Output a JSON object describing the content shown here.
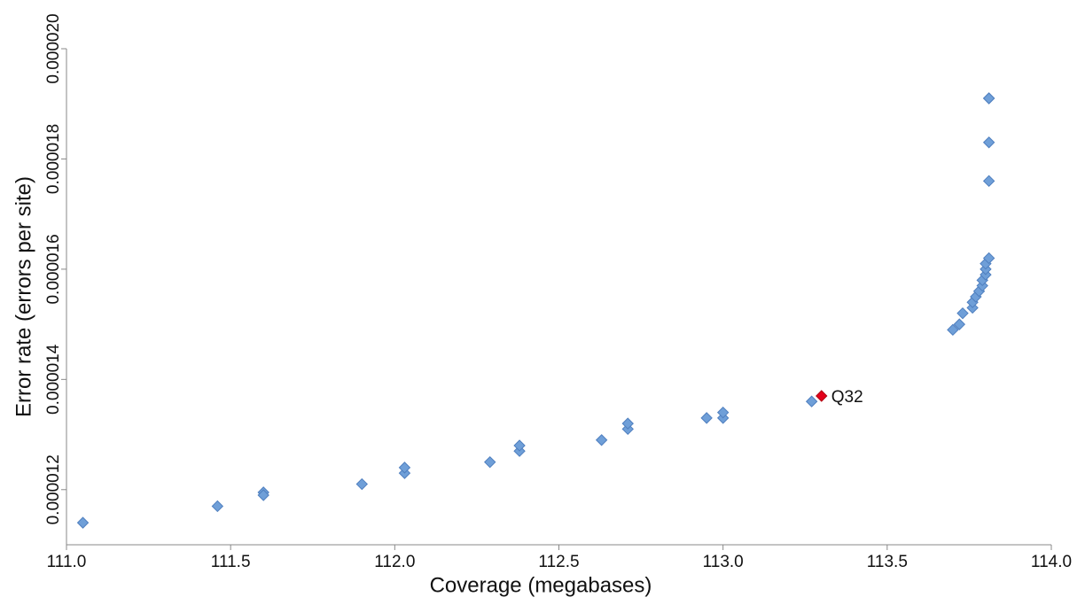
{
  "chart_data": {
    "type": "scatter",
    "x_label": "Coverage (megabases)",
    "y_label": "Error rate (errors per site)",
    "xlim": [
      111.0,
      114.0
    ],
    "xticks": [
      {
        "value": 111.0,
        "label": "111.0"
      },
      {
        "value": 111.5,
        "label": "111.5"
      },
      {
        "value": 112.0,
        "label": "112.0"
      },
      {
        "value": 112.5,
        "label": "112.5"
      },
      {
        "value": 113.0,
        "label": "113.0"
      },
      {
        "value": 113.5,
        "label": "113.5"
      },
      {
        "value": 114.0,
        "label": "114.0"
      }
    ],
    "ylim": [
      1.1e-05,
      2e-05
    ],
    "yticks": [
      1.2e-05,
      1.4e-05,
      1.6e-05,
      1.8e-05,
      {
        "value": 2e-05,
        "label": "0.000020"
      }
    ],
    "series": [
      {
        "color": "#6f9fd8",
        "x": [
          111.05,
          111.46,
          111.6,
          111.6,
          111.9,
          112.03,
          112.03,
          112.29,
          112.38,
          112.38,
          112.63,
          112.71,
          112.71,
          112.95,
          113.0,
          113.0,
          113.27,
          113.7,
          113.72,
          113.73,
          113.76,
          113.76,
          113.77,
          113.78,
          113.79,
          113.79,
          113.8,
          113.8,
          113.8,
          113.81,
          113.81,
          113.81,
          113.81,
          113.81
        ],
        "values": [
          1.14e-05,
          1.17e-05,
          1.195e-05,
          1.19e-05,
          1.21e-05,
          1.23e-05,
          1.24e-05,
          1.25e-05,
          1.27e-05,
          1.28e-05,
          1.29e-05,
          1.31e-05,
          1.32e-05,
          1.33e-05,
          1.33e-05,
          1.34e-05,
          1.36e-05,
          1.49e-05,
          1.5e-05,
          1.52e-05,
          1.53e-05,
          1.54e-05,
          1.55e-05,
          1.56e-05,
          1.57e-05,
          1.58e-05,
          1.59e-05,
          1.6e-05,
          1.61e-05,
          1.62e-05,
          1.76e-05,
          1.83e-05,
          1.91e-05,
          1.91e-05
        ]
      },
      {
        "name": "Q32",
        "color": "#e3001b",
        "x": [
          113.3
        ],
        "values": [
          1.37e-05
        ]
      }
    ]
  }
}
